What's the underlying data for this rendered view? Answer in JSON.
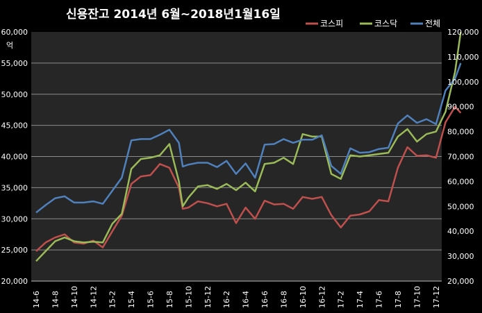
{
  "chart_data": {
    "type": "line",
    "title": "신용잔고 2014년 6월~2018년1월16일",
    "unit_label": "억",
    "background": "#000000",
    "plot_background": "#262626",
    "gridline_color": "#8c8c8c",
    "grid": true,
    "legend_position": "top-right",
    "x_ticks": [
      "14-6",
      "14-8",
      "14-10",
      "14-12",
      "15-2",
      "15-4",
      "15-6",
      "15-8",
      "15-10",
      "15-12",
      "16-2",
      "16-4",
      "16-6",
      "16-8",
      "16-10",
      "16-12",
      "17-2",
      "17-4",
      "17-6",
      "17-8",
      "17-10",
      "17-12"
    ],
    "y_left": {
      "min": 20000,
      "max": 60000,
      "step": 5000,
      "tick_labels": [
        "20,000",
        "25,000",
        "30,000",
        "35,000",
        "40,000",
        "45,000",
        "50,000",
        "55,000",
        "60,000"
      ]
    },
    "y_right": {
      "min": 20000,
      "max": 120000,
      "step": 10000,
      "tick_labels": [
        "20,000",
        "30,000",
        "40,000",
        "50,000",
        "60,000",
        "70,000",
        "80,000",
        "90,000",
        "100,000",
        "110,000",
        "120,000"
      ]
    },
    "series": [
      {
        "name": "코스피",
        "color": "#c0504d",
        "axis": "left",
        "x": [
          0,
          0.5,
          1,
          1.5,
          2,
          2.5,
          3,
          3.5,
          4,
          4.5,
          5,
          5.5,
          6,
          6.5,
          7,
          7.5,
          7.7,
          8,
          8.5,
          9,
          9.5,
          10,
          10.5,
          11,
          11.5,
          12,
          12.5,
          13,
          13.5,
          14,
          14.5,
          15,
          15.5,
          16,
          16.5,
          17,
          17.5,
          18,
          18.5,
          19,
          19.5,
          20,
          20.5,
          21,
          21.5,
          22,
          22.3
        ],
        "values": [
          24800,
          26200,
          27000,
          27500,
          26200,
          26000,
          26500,
          25400,
          28000,
          30500,
          35600,
          36800,
          37000,
          38800,
          38200,
          35000,
          31600,
          31800,
          32800,
          32500,
          32000,
          32400,
          29300,
          31800,
          30000,
          32900,
          32300,
          32400,
          31600,
          33500,
          33200,
          33500,
          30600,
          28600,
          30500,
          30700,
          31200,
          33000,
          32800,
          38200,
          41500,
          40100,
          40200,
          39800,
          45500,
          48000,
          47000
        ]
      },
      {
        "name": "코스닥",
        "color": "#9bbb59",
        "axis": "right",
        "x": [
          0,
          0.5,
          1,
          1.5,
          2,
          2.5,
          3,
          3.5,
          4,
          4.5,
          5,
          5.5,
          6,
          6.5,
          7,
          7.5,
          7.7,
          8,
          8.5,
          9,
          9.5,
          10,
          10.5,
          11,
          11.5,
          12,
          12.5,
          13,
          13.5,
          14,
          14.5,
          15,
          15.5,
          16,
          16.5,
          17,
          17.5,
          18,
          18.5,
          19,
          19.5,
          20,
          20.5,
          21,
          21.5,
          22,
          22.3
        ],
        "values": [
          28000,
          32000,
          36000,
          37500,
          36000,
          35500,
          35800,
          35500,
          43000,
          47000,
          65000,
          69000,
          69500,
          70500,
          75000,
          60000,
          50000,
          53500,
          58000,
          58500,
          57000,
          59000,
          56500,
          59500,
          56000,
          67000,
          67500,
          69500,
          67000,
          79000,
          78000,
          78000,
          63000,
          61000,
          70500,
          70000,
          70500,
          71000,
          71500,
          78000,
          81000,
          76000,
          79000,
          80000,
          88000,
          104000,
          120000
        ]
      },
      {
        "name": "전체",
        "color": "#4f81bd",
        "axis": "left",
        "x": [
          0,
          0.5,
          1,
          1.5,
          2,
          2.5,
          3,
          3.5,
          4,
          4.5,
          5,
          5.5,
          6,
          6.5,
          7,
          7.5,
          7.7,
          8,
          8.5,
          9,
          9.5,
          10,
          10.5,
          11,
          11.5,
          12,
          12.5,
          13,
          13.5,
          14,
          14.5,
          15,
          15.5,
          16,
          16.5,
          17,
          17.5,
          18,
          18.5,
          19,
          19.5,
          20,
          20.5,
          21,
          21.5,
          22,
          22.3
        ],
        "values": [
          31000,
          32200,
          33300,
          33600,
          32600,
          32600,
          32800,
          32400,
          34500,
          36600,
          42600,
          42800,
          42800,
          43500,
          44300,
          42200,
          38400,
          38700,
          39000,
          39000,
          38300,
          39300,
          37200,
          38900,
          36600,
          41900,
          42000,
          42800,
          42200,
          42700,
          42700,
          43400,
          38500,
          37200,
          41300,
          40600,
          40700,
          41200,
          41400,
          45300,
          46600,
          45400,
          46000,
          45200,
          50600,
          52500,
          55000
        ]
      }
    ]
  }
}
